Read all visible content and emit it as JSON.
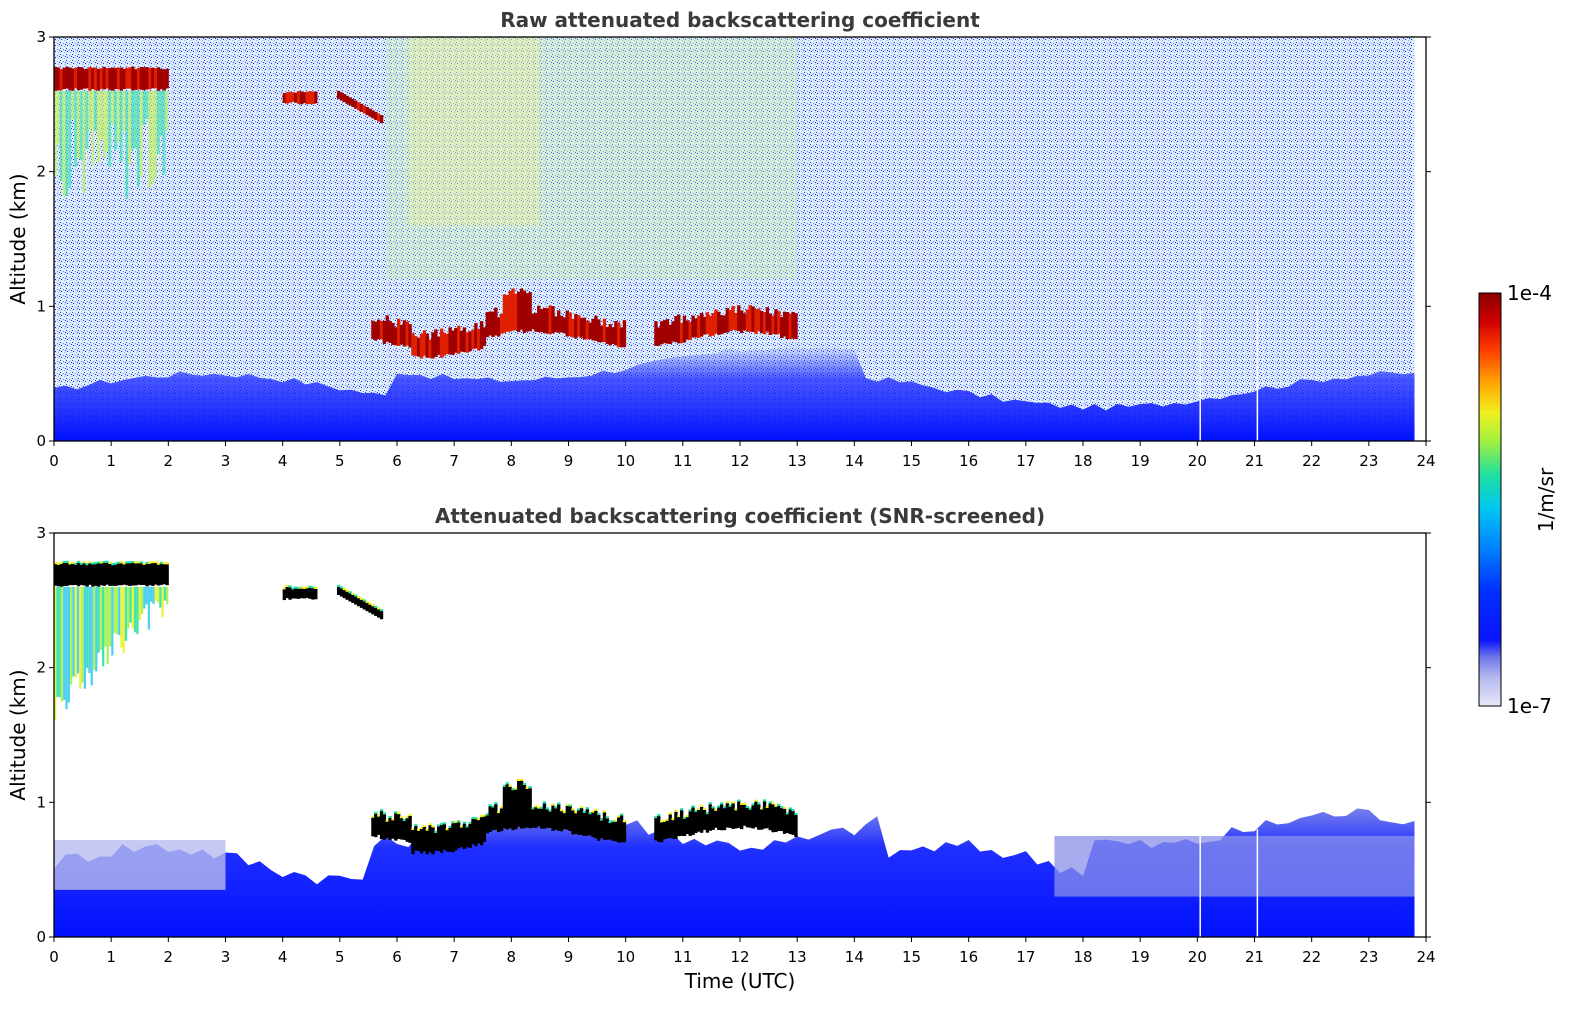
{
  "chart_data": [
    {
      "type": "heatmap",
      "title": "Raw attenuated backscattering coefficient",
      "xlabel": "",
      "ylabel": "Altitude (km)",
      "xlim": [
        0,
        24
      ],
      "ylim": [
        0,
        3
      ],
      "x_ticks": [
        "0",
        "1",
        "2",
        "3",
        "4",
        "5",
        "6",
        "7",
        "8",
        "9",
        "10",
        "11",
        "12",
        "13",
        "14",
        "15",
        "16",
        "17",
        "18",
        "19",
        "20",
        "21",
        "22",
        "23",
        "24"
      ],
      "y_ticks": [
        "0",
        "1",
        "2",
        "3"
      ],
      "data_end_time": 23.8,
      "features": [
        {
          "type": "cloud",
          "t_start": 0.0,
          "t_end": 2.0,
          "alt_bottom": 2.6,
          "alt_top": 2.78
        },
        {
          "type": "cloud",
          "t_start": 4.0,
          "t_end": 4.55,
          "alt_bottom": 2.5,
          "alt_top": 2.6
        },
        {
          "type": "cloud",
          "t_start": 4.95,
          "t_end": 5.7,
          "alt_bottom": 2.35,
          "alt_top": 2.58
        },
        {
          "type": "cloud",
          "t_start": 5.55,
          "t_end": 13.0,
          "alt_bottom": 0.7,
          "alt_top": 1.1
        },
        {
          "type": "boundary_layer",
          "t_start": 0.0,
          "t_end": 23.8,
          "alt_bottom": 0.0,
          "alt_top": 0.5
        }
      ]
    },
    {
      "type": "heatmap",
      "title": "Attenuated backscattering coefficient (SNR-screened)",
      "xlabel": "Time (UTC)",
      "ylabel": "Altitude (km)",
      "xlim": [
        0,
        24
      ],
      "ylim": [
        0,
        3
      ],
      "x_ticks": [
        "0",
        "1",
        "2",
        "3",
        "4",
        "5",
        "6",
        "7",
        "8",
        "9",
        "10",
        "11",
        "12",
        "13",
        "14",
        "15",
        "16",
        "17",
        "18",
        "19",
        "20",
        "21",
        "22",
        "23",
        "24"
      ],
      "y_ticks": [
        "0",
        "1",
        "2",
        "3"
      ],
      "data_end_time": 23.8,
      "features": [
        {
          "type": "cloud",
          "t_start": 0.0,
          "t_end": 2.0,
          "alt_bottom": 2.6,
          "alt_top": 2.78
        },
        {
          "type": "virga",
          "t_start": 0.0,
          "t_end": 2.0,
          "alt_bottom": 1.6,
          "alt_top": 2.6
        },
        {
          "type": "cloud",
          "t_start": 4.0,
          "t_end": 4.55,
          "alt_bottom": 2.5,
          "alt_top": 2.6
        },
        {
          "type": "cloud",
          "t_start": 4.95,
          "t_end": 5.7,
          "alt_bottom": 2.35,
          "alt_top": 2.58
        },
        {
          "type": "cloud",
          "t_start": 5.55,
          "t_end": 13.0,
          "alt_bottom": 0.7,
          "alt_top": 1.1
        },
        {
          "type": "boundary_layer",
          "t_start": 0.0,
          "t_end": 23.8,
          "alt_bottom": 0.0,
          "alt_top": 0.95
        }
      ]
    }
  ],
  "colorbar": {
    "label": "1/m/sr",
    "min_label": "1e-7",
    "max_label": "1e-4",
    "scale": "log",
    "colormap": [
      "#e8e8f8",
      "#b4b8ee",
      "#7a80e6",
      "#2a32f0",
      "#0010ff",
      "#0048ff",
      "#0090ff",
      "#00c8e8",
      "#20e0a0",
      "#90f040",
      "#e8f020",
      "#ffb000",
      "#ff5000",
      "#e00000",
      "#900000"
    ]
  }
}
